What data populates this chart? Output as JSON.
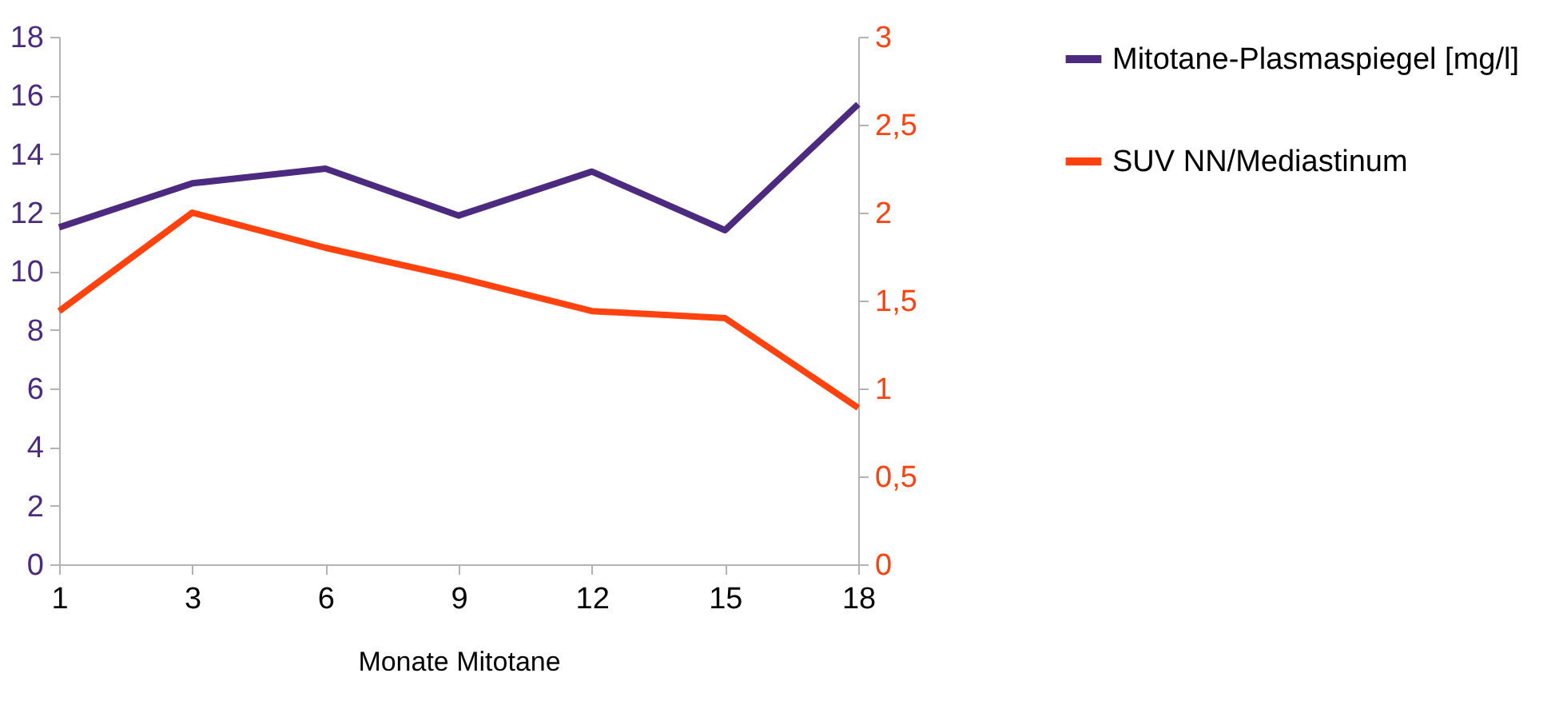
{
  "chart_data": {
    "type": "line",
    "xlabel": "Monate Mitotane",
    "categories": [
      "1",
      "3",
      "6",
      "9",
      "12",
      "15",
      "18"
    ],
    "series": [
      {
        "name": "Mitotane-Plasmaspiegel [mg/l]",
        "color": "#4b2a7f",
        "values": [
          11.5,
          13.0,
          13.5,
          11.9,
          13.4,
          11.4,
          15.7
        ]
      },
      {
        "name": "SUV NN/Mediastinum",
        "color": "#ff420e",
        "axis": "y2",
        "values": [
          1.44,
          2.0,
          1.8,
          1.63,
          1.44,
          1.4,
          0.89
        ]
      }
    ],
    "ylim": [
      0,
      18
    ],
    "yticks": [
      0,
      2,
      4,
      6,
      8,
      10,
      12,
      14,
      16,
      18
    ],
    "y2lim": [
      0,
      3
    ],
    "y2ticks": [
      0,
      {
        "value": 0.5,
        "label": "0,5"
      },
      1,
      {
        "value": 1.5,
        "label": "1,5"
      },
      2,
      {
        "value": 2.5,
        "label": "2,5"
      },
      3
    ],
    "legend": "right",
    "grid": false,
    "marker": "none",
    "line_style": "solid"
  }
}
